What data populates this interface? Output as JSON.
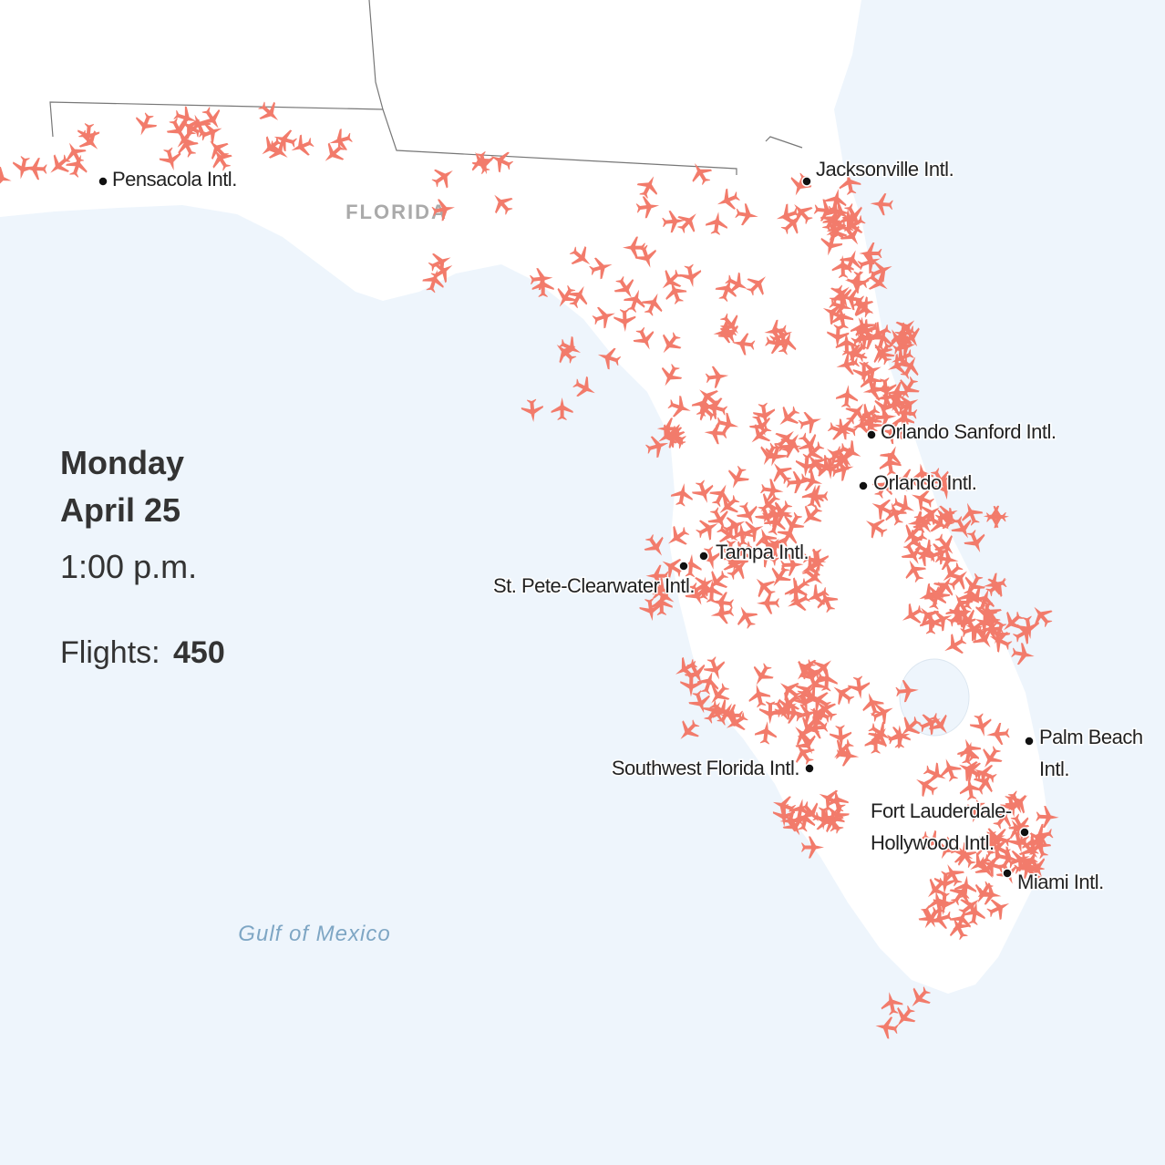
{
  "info": {
    "day": "Monday",
    "date": "April 25",
    "time": "1:00 p.m.",
    "flights_label": "Flights:",
    "flights": 450
  },
  "regions": {
    "state": "FLORIDA",
    "sea": "Gulf of Mexico"
  },
  "airports": [
    {
      "lines": [
        "Pensacola Intl."
      ]
    },
    {
      "lines": [
        "Jacksonville Intl."
      ]
    },
    {
      "lines": [
        "Orlando Sanford Intl."
      ]
    },
    {
      "lines": [
        "Orlando Intl."
      ]
    },
    {
      "lines": [
        "Tampa Intl."
      ]
    },
    {
      "lines": [
        "St. Pete-Clearwater Intl."
      ]
    },
    {
      "lines": [
        "Southwest Florida Intl."
      ]
    },
    {
      "lines": [
        "Palm Beach",
        "Intl."
      ]
    },
    {
      "lines": [
        "Fort Lauderdale-",
        "Hollywood Intl."
      ]
    },
    {
      "lines": [
        "Miami Intl."
      ]
    }
  ]
}
